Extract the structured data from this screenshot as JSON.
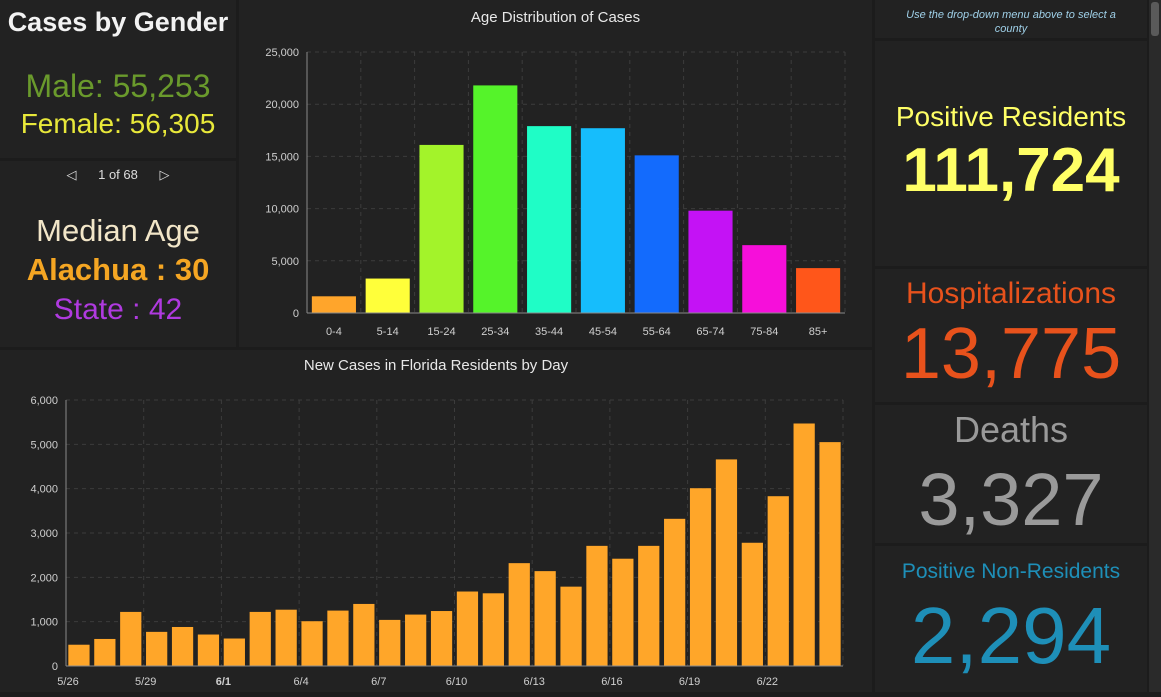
{
  "gender_panel": {
    "title": "Cases by Gender",
    "male": "Male: 55,253",
    "female": "Female: 56,305"
  },
  "pager": {
    "text": "1 of 68"
  },
  "median_panel": {
    "title": "Median Age",
    "county": "Alachua : 30",
    "state": "State : 42"
  },
  "sidebar": {
    "hint": "Use the drop-down menu above to select a county",
    "positive_residents": {
      "label": "Positive Residents",
      "value": "111,724"
    },
    "hospitalizations": {
      "label": "Hospitalizations",
      "value": "13,775"
    },
    "deaths": {
      "label": "Deaths",
      "value": "3,327"
    },
    "non_residents": {
      "label": "Positive Non-Residents",
      "value": "2,294"
    }
  },
  "colors": {
    "male": "#6a9a2c",
    "female": "#e8e83a",
    "county": "#f5a623",
    "state": "#b03ae0",
    "positive": "#ffff66",
    "hospital": "#e8521c",
    "deaths": "#9a9a9a",
    "nonres": "#1e8fb8",
    "daily_bar": "#ffa629"
  },
  "chart_data": [
    {
      "type": "bar",
      "title": "Age Distribution of Cases",
      "categories": [
        "0-4",
        "5-14",
        "15-24",
        "25-34",
        "35-44",
        "45-54",
        "55-64",
        "65-74",
        "75-84",
        "85+"
      ],
      "values": [
        1600,
        3300,
        16100,
        21800,
        17900,
        17700,
        15100,
        9800,
        6500,
        4300
      ],
      "bar_colors": [
        "#ffa52b",
        "#ffff3a",
        "#a3f32a",
        "#55f32a",
        "#1ffdc6",
        "#16bdfc",
        "#136bfd",
        "#c412f5",
        "#f60fda",
        "#ff561a"
      ],
      "ylim": [
        0,
        25000
      ],
      "yticks": [
        "0",
        "5,000",
        "10,000",
        "15,000",
        "20,000",
        "25,000"
      ],
      "ytick_values": [
        0,
        5000,
        10000,
        15000,
        20000,
        25000
      ],
      "grid": true
    },
    {
      "type": "bar",
      "title": "New Cases in Florida Residents by Day",
      "values": [
        480,
        610,
        1220,
        770,
        880,
        710,
        620,
        1220,
        1270,
        1010,
        1250,
        1400,
        1040,
        1160,
        1240,
        1680,
        1640,
        2320,
        2140,
        1790,
        2710,
        2420,
        2710,
        3320,
        4010,
        4660,
        2780,
        3830,
        5470,
        5050
      ],
      "xticks": [
        "5/26",
        "5/29",
        "6/1",
        "6/4",
        "6/7",
        "6/10",
        "6/13",
        "6/16",
        "6/19",
        "6/22"
      ],
      "xtick_index": [
        0,
        3,
        6,
        9,
        12,
        15,
        18,
        21,
        24,
        27
      ],
      "ylim": [
        0,
        6000
      ],
      "yticks": [
        "0",
        "1,000",
        "2,000",
        "3,000",
        "4,000",
        "5,000",
        "6,000"
      ],
      "ytick_values": [
        0,
        1000,
        2000,
        3000,
        4000,
        5000,
        6000
      ],
      "grid": true
    }
  ]
}
